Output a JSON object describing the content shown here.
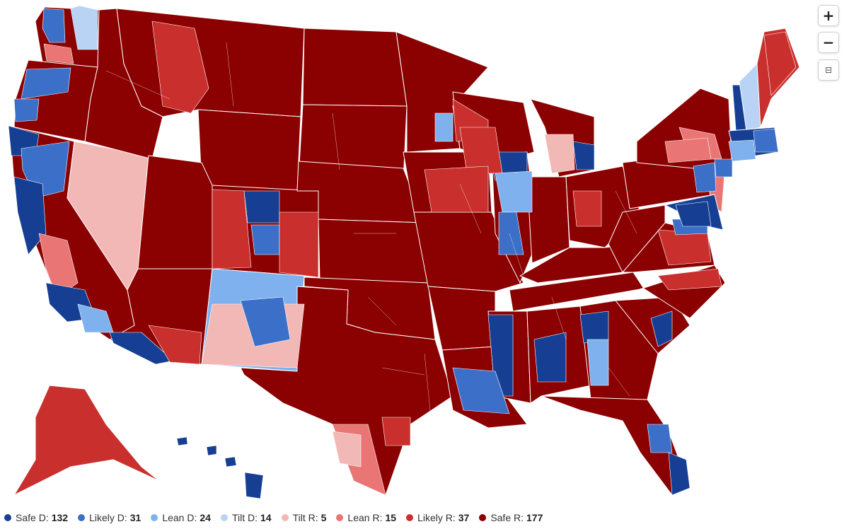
{
  "map": {
    "controls": {
      "zoom_in": "+",
      "zoom_out": "−",
      "reset": "⊟"
    },
    "colors": {
      "safe_d": "#163f93",
      "likely_d": "#3b6fc8",
      "lean_d": "#7fb1ee",
      "tilt_d": "#b9d3f4",
      "tilt_r": "#f2b8b6",
      "lean_r": "#e97574",
      "likely_r": "#c9302d",
      "safe_r": "#8b0000",
      "border": "#ffffff"
    }
  },
  "legend": [
    {
      "label": "Safe D:",
      "count": "132",
      "color": "#163f93"
    },
    {
      "label": "Likely D:",
      "count": "31",
      "color": "#3b6fc8"
    },
    {
      "label": "Lean D:",
      "count": "24",
      "color": "#7fb1ee"
    },
    {
      "label": "Tilt D:",
      "count": "14",
      "color": "#b9d3f4"
    },
    {
      "label": "Tilt R:",
      "count": "5",
      "color": "#f2b8b6"
    },
    {
      "label": "Lean R:",
      "count": "15",
      "color": "#e97574"
    },
    {
      "label": "Likely R:",
      "count": "37",
      "color": "#c9302d"
    },
    {
      "label": "Safe R:",
      "count": "177",
      "color": "#8b0000"
    }
  ]
}
